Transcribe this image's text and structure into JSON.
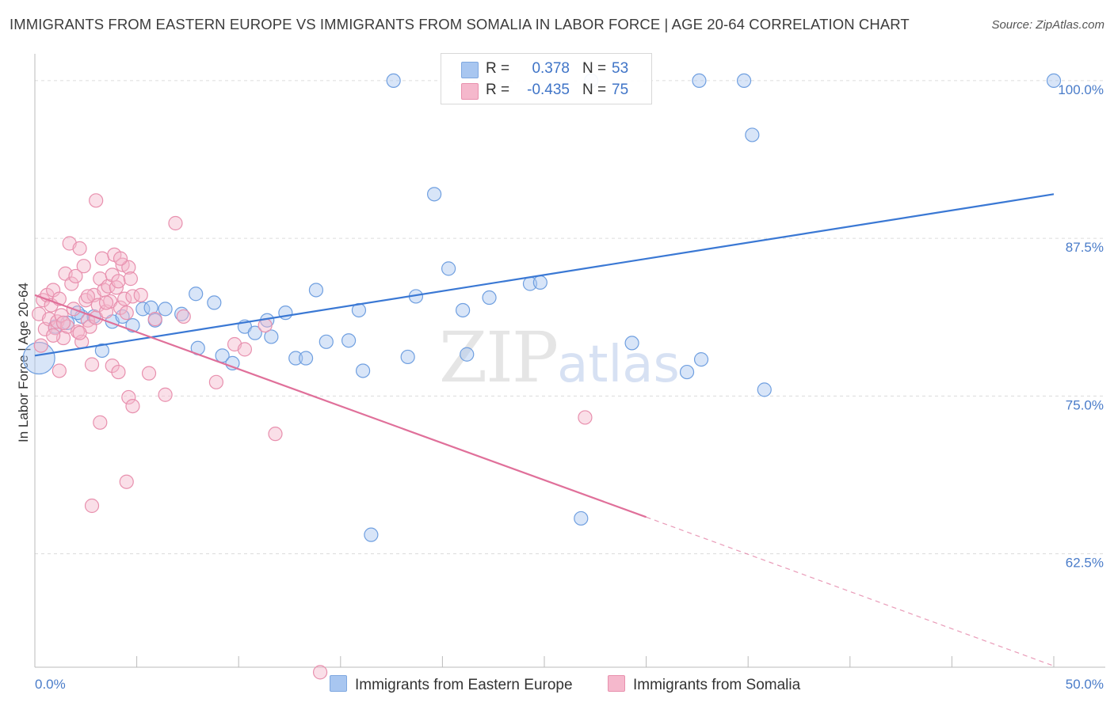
{
  "header": {
    "title": "IMMIGRANTS FROM EASTERN EUROPE VS IMMIGRANTS FROM SOMALIA IN LABOR FORCE | AGE 20-64 CORRELATION CHART",
    "source": "Source: ZipAtlas.com"
  },
  "watermark": {
    "zip": "ZIP",
    "atlas": "atlas"
  },
  "legend": {
    "rows": [
      {
        "r_label": "R =",
        "r_value": "0.378",
        "n_label": "N =",
        "n_value": "53",
        "color": "#a8c6f0"
      },
      {
        "r_label": "R =",
        "r_value": "-0.435",
        "n_label": "N =",
        "n_value": "75",
        "color": "#f5b8cc"
      }
    ]
  },
  "bottom_legend": {
    "items": [
      {
        "label": "Immigrants from Eastern Europe",
        "color": "#a8c6f0"
      },
      {
        "label": "Immigrants from Somalia",
        "color": "#f5b8cc"
      }
    ]
  },
  "chart_data": {
    "type": "scatter",
    "title": "IMMIGRANTS FROM EASTERN EUROPE VS IMMIGRANTS FROM SOMALIA IN LABOR FORCE | AGE 20-64 CORRELATION CHART",
    "xlabel": "",
    "ylabel": "In Labor Force | Age 20-64",
    "xlim": [
      0,
      50
    ],
    "ylim": [
      53.5,
      101.5
    ],
    "x_tick_labels": [
      "0.0%",
      "50.0%"
    ],
    "y_ticks": [
      62.5,
      75.0,
      87.5,
      100.0
    ],
    "y_tick_labels": [
      "62.5%",
      "75.0%",
      "87.5%",
      "100.0%"
    ],
    "grid": true,
    "legend_position": "top-center",
    "series": [
      {
        "name": "Immigrants from Eastern Europe",
        "color": "#a8c6f0",
        "stroke": "#6f9fe0",
        "trend": {
          "x": [
            0,
            50
          ],
          "y": [
            78.2,
            91.0
          ],
          "color": "#3a78d4"
        },
        "points": [
          [
            0.2,
            78.0,
            "big"
          ],
          [
            2.3,
            81.3
          ],
          [
            2.9,
            81.3
          ],
          [
            3.3,
            78.6
          ],
          [
            3.8,
            80.9
          ],
          [
            4.3,
            81.3
          ],
          [
            4.8,
            80.6
          ],
          [
            5.3,
            81.9
          ],
          [
            5.9,
            81.0
          ],
          [
            6.4,
            81.9
          ],
          [
            7.2,
            81.5
          ],
          [
            7.9,
            83.1
          ],
          [
            8.0,
            78.8
          ],
          [
            8.8,
            82.4
          ],
          [
            9.2,
            78.2
          ],
          [
            9.7,
            77.6
          ],
          [
            10.3,
            80.5
          ],
          [
            10.8,
            80.0
          ],
          [
            11.4,
            81.0
          ],
          [
            11.6,
            79.7
          ],
          [
            12.3,
            81.6
          ],
          [
            12.8,
            78.0
          ],
          [
            13.3,
            78.0
          ],
          [
            13.8,
            83.4
          ],
          [
            14.3,
            79.3
          ],
          [
            15.4,
            79.4
          ],
          [
            15.9,
            81.8
          ],
          [
            16.1,
            77.0
          ],
          [
            16.5,
            64.0
          ],
          [
            17.6,
            100.0
          ],
          [
            18.3,
            78.1
          ],
          [
            18.7,
            82.9
          ],
          [
            19.6,
            91.0
          ],
          [
            20.3,
            85.1
          ],
          [
            21.0,
            81.8
          ],
          [
            21.2,
            78.3
          ],
          [
            22.3,
            82.8
          ],
          [
            24.3,
            83.9
          ],
          [
            24.8,
            84.0
          ],
          [
            26.8,
            65.3
          ],
          [
            27.3,
            100.0
          ],
          [
            29.3,
            79.2
          ],
          [
            32.0,
            76.9
          ],
          [
            32.6,
            100.0
          ],
          [
            32.7,
            77.9
          ],
          [
            34.8,
            100.0
          ],
          [
            35.2,
            95.7
          ],
          [
            35.8,
            75.5
          ],
          [
            50.0,
            100.0
          ],
          [
            1.0,
            80.5
          ],
          [
            1.6,
            80.8
          ],
          [
            2.1,
            81.6
          ],
          [
            5.7,
            82.0
          ]
        ]
      },
      {
        "name": "Immigrants from Somalia",
        "color": "#f5b8cc",
        "stroke": "#e890ae",
        "trend": {
          "x": [
            0,
            30
          ],
          "y": [
            83.0,
            65.4
          ],
          "dash_to": [
            50,
            53.6
          ],
          "color": "#e0709a"
        },
        "points": [
          [
            0.2,
            81.5
          ],
          [
            0.3,
            79.0
          ],
          [
            0.4,
            82.6
          ],
          [
            0.5,
            80.3
          ],
          [
            0.6,
            83.0
          ],
          [
            0.7,
            81.1
          ],
          [
            0.8,
            82.2
          ],
          [
            0.9,
            83.4
          ],
          [
            1.0,
            80.4
          ],
          [
            1.1,
            80.9
          ],
          [
            1.2,
            77.0
          ],
          [
            1.3,
            81.4
          ],
          [
            1.4,
            79.6
          ],
          [
            1.5,
            84.7
          ],
          [
            1.6,
            80.5
          ],
          [
            1.7,
            87.1
          ],
          [
            1.8,
            83.9
          ],
          [
            1.9,
            81.9
          ],
          [
            2.0,
            84.5
          ],
          [
            2.1,
            80.1
          ],
          [
            2.2,
            86.7
          ],
          [
            2.3,
            79.3
          ],
          [
            2.4,
            85.3
          ],
          [
            2.5,
            82.6
          ],
          [
            2.6,
            81.0
          ],
          [
            2.7,
            80.5
          ],
          [
            2.8,
            77.5
          ],
          [
            2.9,
            83.0
          ],
          [
            3.0,
            81.2
          ],
          [
            3.1,
            82.2
          ],
          [
            3.2,
            84.3
          ],
          [
            3.3,
            85.9
          ],
          [
            3.4,
            83.4
          ],
          [
            3.5,
            81.7
          ],
          [
            3.6,
            83.7
          ],
          [
            3.7,
            82.5
          ],
          [
            3.8,
            84.6
          ],
          [
            3.9,
            86.2
          ],
          [
            4.0,
            83.6
          ],
          [
            4.1,
            84.1
          ],
          [
            4.2,
            82.0
          ],
          [
            4.3,
            85.4
          ],
          [
            4.4,
            82.7
          ],
          [
            4.5,
            81.6
          ],
          [
            4.6,
            85.2
          ],
          [
            4.7,
            84.3
          ],
          [
            4.8,
            82.9
          ],
          [
            3.0,
            90.5
          ],
          [
            3.2,
            72.9
          ],
          [
            2.8,
            66.3
          ],
          [
            3.8,
            77.4
          ],
          [
            4.1,
            76.9
          ],
          [
            4.6,
            74.9
          ],
          [
            4.5,
            68.2
          ],
          [
            4.8,
            74.2
          ],
          [
            5.2,
            83.0
          ],
          [
            5.6,
            76.8
          ],
          [
            5.9,
            81.1
          ],
          [
            6.4,
            75.1
          ],
          [
            6.9,
            88.7
          ],
          [
            7.3,
            81.3
          ],
          [
            8.9,
            76.1
          ],
          [
            9.8,
            79.1
          ],
          [
            10.3,
            78.7
          ],
          [
            11.3,
            80.6
          ],
          [
            11.8,
            72.0
          ],
          [
            14.0,
            53.1
          ],
          [
            27.0,
            73.3
          ],
          [
            1.2,
            82.7
          ],
          [
            1.4,
            80.8
          ],
          [
            0.9,
            79.8
          ],
          [
            2.2,
            80.0
          ],
          [
            3.5,
            82.4
          ],
          [
            4.2,
            85.9
          ],
          [
            2.6,
            82.9
          ]
        ]
      }
    ]
  }
}
